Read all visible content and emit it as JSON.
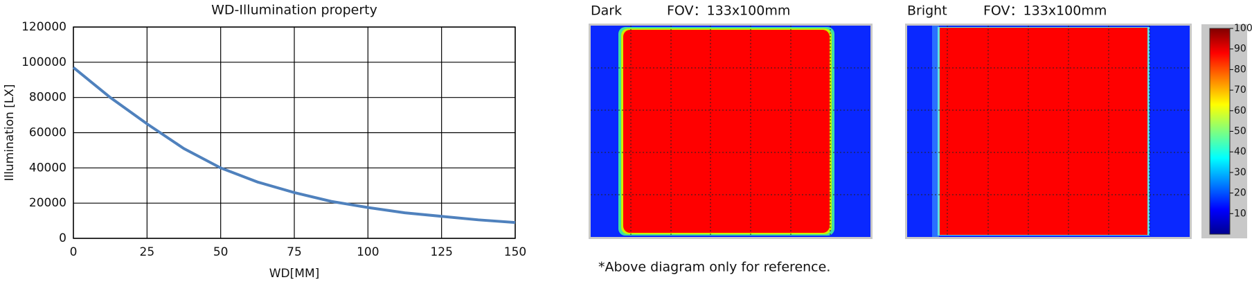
{
  "chart_data": [
    {
      "type": "line",
      "title": "WD-Illumination property",
      "x_label": "WD[MM]",
      "y_label": "Illumination [LX]",
      "x": [
        0,
        12.5,
        25,
        37.5,
        50,
        62.5,
        75,
        87.5,
        100,
        112.5,
        125,
        137.5,
        150
      ],
      "values": [
        97000,
        80000,
        65000,
        51000,
        40000,
        32000,
        26000,
        21000,
        17500,
        14500,
        12500,
        10500,
        9000
      ],
      "color": "#4f81bd",
      "xlim": [
        0,
        150
      ],
      "xticks": [
        0,
        25,
        50,
        75,
        100,
        125,
        150
      ],
      "ylim": [
        0,
        120000
      ],
      "yticks": [
        0,
        20000,
        40000,
        60000,
        80000,
        100000,
        120000
      ],
      "grid": true
    },
    {
      "type": "heatmap",
      "panels": [
        {
          "name": "Dark",
          "fov": "FOV：133x100mm"
        },
        {
          "name": "Bright",
          "fov": "FOV：133x100mm"
        }
      ],
      "clim": [
        0,
        100
      ],
      "colorbar_ticks": [
        10,
        20,
        30,
        40,
        50,
        60,
        70,
        80,
        90,
        100
      ],
      "note": "*Above diagram only for reference."
    }
  ]
}
